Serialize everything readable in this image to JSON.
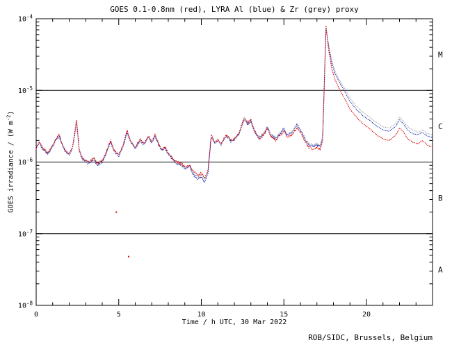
{
  "footer": "ROB/SIDC, Brussels, Belgium",
  "chart_data": {
    "type": "line",
    "style": "dotted",
    "title": "GOES 0.1-0.8nm (red), LYRA Al (blue) & Zr (grey) proxy",
    "xlabel": "Time / h UTC, 30 Mar 2022",
    "ylabel_parts": {
      "main": "GOES irradiance / (W m",
      "sup": "-2",
      "end": ")"
    },
    "xlim": [
      0,
      24
    ],
    "x_major_ticks": [
      0,
      5,
      10,
      15,
      20
    ],
    "x_minor_step": 1,
    "ylog": true,
    "y_top_exponent": -4,
    "y_bottom_exponent": -8,
    "y_tick_exponents": [
      -4,
      -5,
      -6,
      -7,
      -8
    ],
    "hlines": [
      1e-05,
      1e-06,
      1e-07
    ],
    "flare_classes": [
      {
        "label": "M",
        "value": 3.16e-05
      },
      {
        "label": "C",
        "value": 3.16e-06
      },
      {
        "label": "B",
        "value": 3.16e-07
      },
      {
        "label": "A",
        "value": 3.16e-08
      }
    ],
    "unit": "W m^-2",
    "values_scale": 1e-06,
    "x": [
      0,
      0.2,
      0.4,
      0.7,
      1,
      1.2,
      1.4,
      1.6,
      1.8,
      2,
      2.2,
      2.45,
      2.6,
      2.8,
      3,
      3.2,
      3.5,
      3.7,
      4,
      4.2,
      4.5,
      4.7,
      5,
      5.3,
      5.5,
      5.7,
      6,
      6.3,
      6.5,
      6.8,
      7,
      7.2,
      7.4,
      7.6,
      7.8,
      8,
      8.3,
      8.5,
      8.8,
      9,
      9.3,
      9.5,
      9.8,
      10,
      10.2,
      10.4,
      10.6,
      10.8,
      11,
      11.2,
      11.5,
      11.8,
      12,
      12.3,
      12.6,
      12.8,
      13,
      13.2,
      13.5,
      13.8,
      14,
      14.2,
      14.5,
      14.8,
      15,
      15.2,
      15.5,
      15.8,
      16,
      16.3,
      16.5,
      16.8,
      17,
      17.2,
      17.35,
      17.45,
      17.55,
      17.7,
      17.9,
      18.1,
      18.4,
      18.7,
      19,
      19.4,
      19.8,
      20.2,
      20.6,
      21,
      21.4,
      21.8,
      22,
      22.2,
      22.5,
      22.8,
      23.1,
      23.4,
      23.7,
      24
    ],
    "series": [
      {
        "name": "GOES 0.1-0.8nm",
        "color": "#dd0000",
        "values": [
          1.6,
          1.9,
          1.55,
          1.35,
          1.7,
          2.1,
          2.4,
          1.7,
          1.4,
          1.3,
          1.6,
          4,
          1.5,
          1.15,
          1.05,
          1,
          1.15,
          0.95,
          1.05,
          1.3,
          2,
          1.5,
          1.25,
          1.8,
          2.8,
          2,
          1.6,
          2.1,
          1.8,
          2.3,
          1.9,
          2.4,
          1.8,
          1.5,
          1.6,
          1.35,
          1.1,
          1,
          0.95,
          0.85,
          0.9,
          0.75,
          0.65,
          0.7,
          0.6,
          0.75,
          2.4,
          1.9,
          2,
          1.8,
          2.4,
          2,
          2.1,
          2.6,
          4.2,
          3.5,
          3.9,
          2.8,
          2.1,
          2.4,
          3,
          2.3,
          2,
          2.4,
          2.7,
          2.2,
          2.4,
          3,
          2.6,
          1.9,
          1.6,
          1.5,
          1.6,
          1.5,
          2,
          12,
          80,
          38,
          20,
          14,
          10,
          7.5,
          5.5,
          4.2,
          3.4,
          2.9,
          2.4,
          2.1,
          2,
          2.4,
          3,
          2.7,
          2.1,
          1.9,
          1.8,
          2,
          1.7,
          1.6
        ]
      },
      {
        "name": "LYRA Al proxy",
        "color": "#2233bb",
        "values": [
          1.55,
          1.85,
          1.5,
          1.3,
          1.65,
          2.05,
          2.3,
          1.65,
          1.35,
          1.25,
          1.55,
          3.6,
          1.45,
          1.1,
          1,
          0.95,
          1.1,
          0.9,
          1,
          1.25,
          1.9,
          1.45,
          1.2,
          1.75,
          2.6,
          1.95,
          1.55,
          2,
          1.75,
          2.2,
          1.85,
          2.3,
          1.75,
          1.45,
          1.55,
          1.3,
          1.05,
          0.95,
          0.9,
          0.8,
          0.85,
          0.68,
          0.58,
          0.62,
          0.52,
          0.68,
          2.2,
          1.85,
          1.95,
          1.75,
          2.3,
          1.95,
          2.05,
          2.5,
          4,
          3.4,
          3.7,
          2.7,
          2.15,
          2.5,
          3.1,
          2.4,
          2.1,
          2.55,
          2.9,
          2.35,
          2.6,
          3.3,
          2.8,
          2.05,
          1.75,
          1.65,
          1.75,
          1.65,
          2.2,
          14,
          75,
          42,
          24,
          17,
          12.5,
          9.5,
          7,
          5.4,
          4.4,
          3.8,
          3.2,
          2.8,
          2.7,
          3.2,
          3.9,
          3.5,
          2.8,
          2.5,
          2.4,
          2.6,
          2.3,
          2.2
        ]
      },
      {
        "name": "LYRA Zr proxy",
        "color": "#a6a6a6",
        "values": [
          1.6,
          1.9,
          1.55,
          1.35,
          1.7,
          2.1,
          2.35,
          1.7,
          1.4,
          1.3,
          1.6,
          3.7,
          1.5,
          1.15,
          1.05,
          1,
          1.15,
          0.95,
          1.05,
          1.3,
          1.95,
          1.5,
          1.25,
          1.8,
          2.7,
          2,
          1.6,
          2.05,
          1.8,
          2.25,
          1.9,
          2.35,
          1.8,
          1.5,
          1.6,
          1.35,
          1.1,
          1,
          0.95,
          0.85,
          0.9,
          0.72,
          0.62,
          0.66,
          0.56,
          0.72,
          2.3,
          1.9,
          2,
          1.8,
          2.35,
          2,
          2.1,
          2.55,
          4.1,
          3.45,
          3.8,
          2.75,
          2.2,
          2.55,
          3.15,
          2.45,
          2.15,
          2.6,
          2.95,
          2.4,
          2.65,
          3.4,
          2.85,
          2.1,
          1.8,
          1.7,
          1.8,
          1.7,
          2.3,
          15,
          72,
          44,
          26,
          18.5,
          13.5,
          10.5,
          7.8,
          6,
          4.9,
          4.2,
          3.6,
          3.1,
          3,
          3.5,
          4.3,
          3.8,
          3.1,
          2.8,
          2.6,
          2.8,
          2.5,
          2.4
        ]
      }
    ],
    "stray_points": [
      {
        "x": 4.85,
        "value": 2e-07,
        "color": "#dd0000"
      },
      {
        "x": 5.6,
        "value": 4.8e-08,
        "color": "#dd0000"
      }
    ],
    "legend_position": "in-title"
  }
}
